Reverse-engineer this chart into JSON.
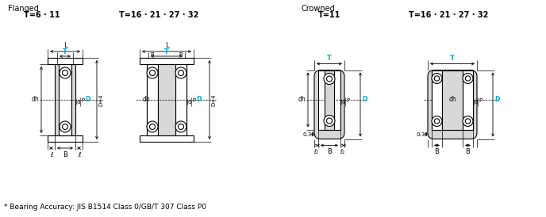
{
  "title_flanged": "Flanged",
  "title_crowned": "Crowned",
  "label_t6_11": "T=6 · 11",
  "label_t16_32_flanged": "T=16 · 21 · 27 · 32",
  "label_t11": "T=11",
  "label_t16_32_crowned": "T=16 · 21 · 27 · 32",
  "footer": "* Bearing Accuracy: JIS B1514 Class 0/GB/T 307 Class P0",
  "bg_color": "#ffffff",
  "line_color": "#000000",
  "blue_color": "#00aadd",
  "gray_fill": "#d8d8d8",
  "dim_line_color": "#000000"
}
